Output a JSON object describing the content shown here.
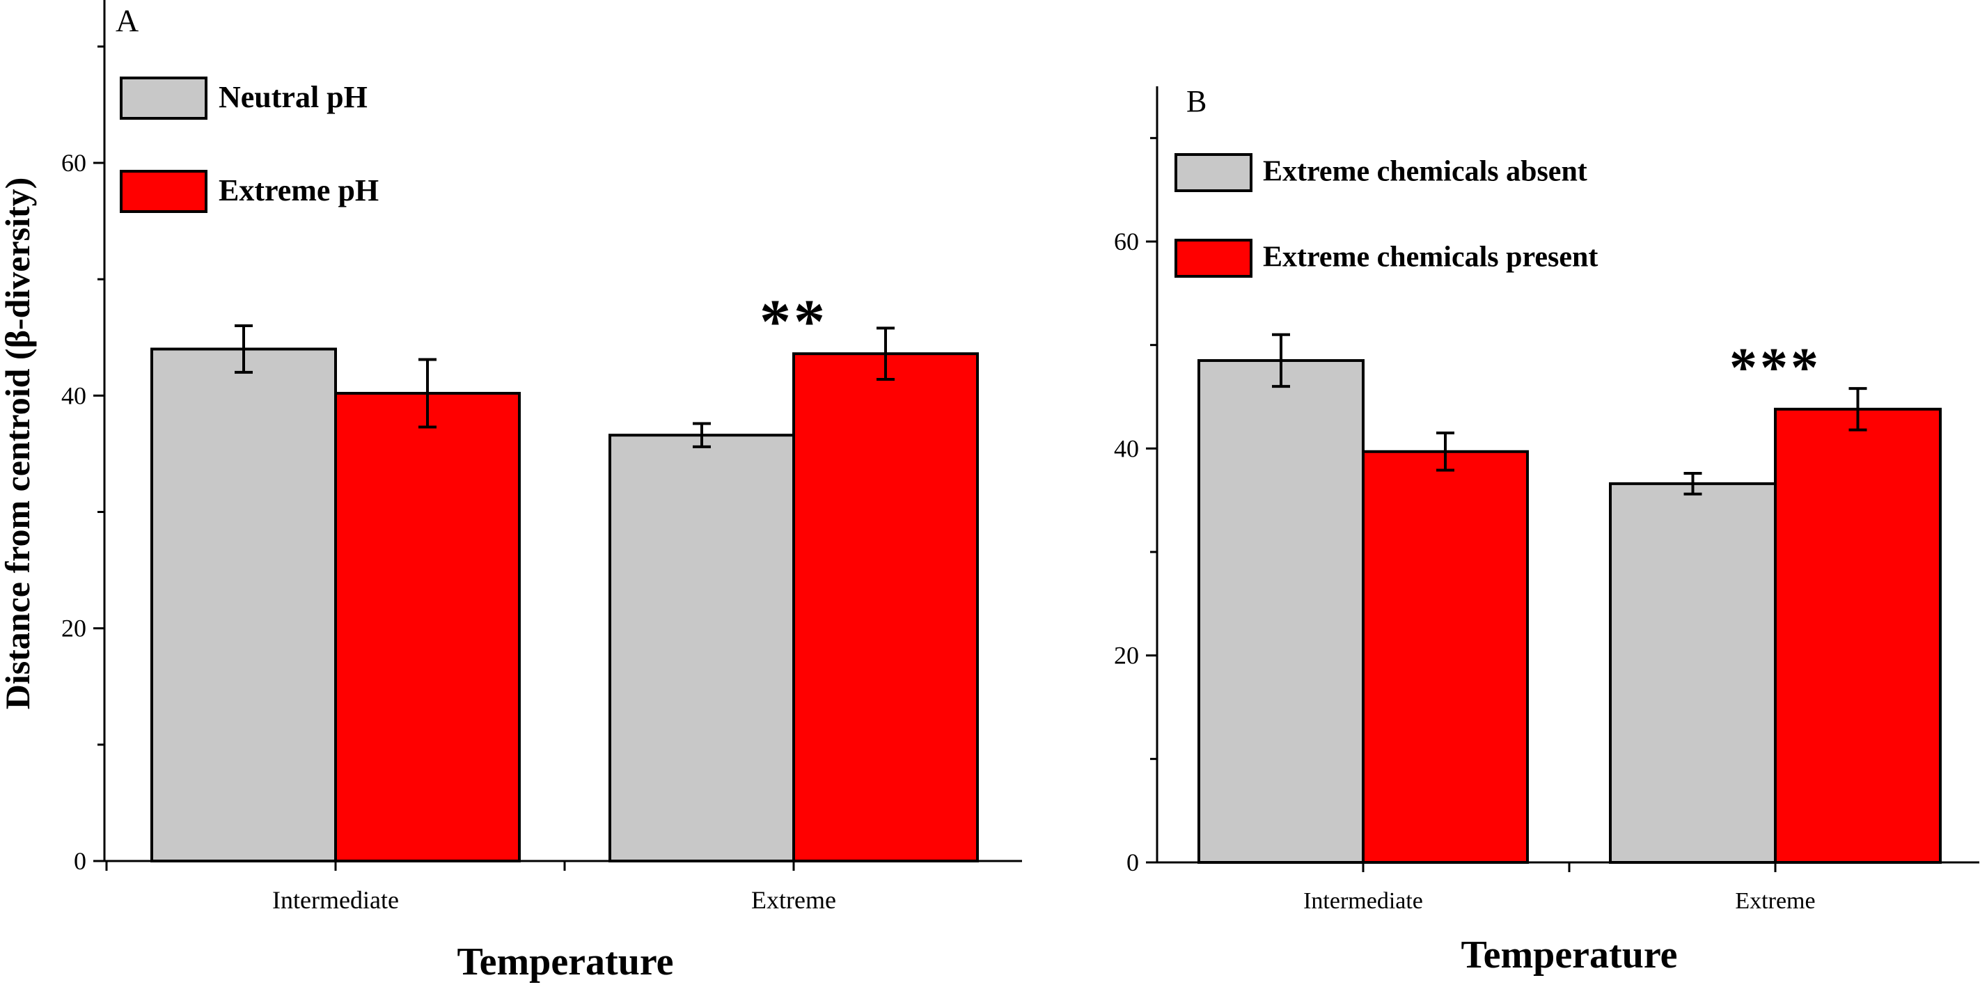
{
  "figure": {
    "ylabel": "Distance from centroid (β-diversity)"
  },
  "chart_data": [
    {
      "type": "bar",
      "panel_label": "A",
      "categories": [
        "Intermediate",
        "Extreme"
      ],
      "series": [
        {
          "name": "Neutral pH",
          "color": "#c8c8c8",
          "values": [
            44.0,
            36.6
          ],
          "errors": [
            2.0,
            1.0
          ]
        },
        {
          "name": "Extreme pH",
          "color": "#ff0000",
          "values": [
            40.2,
            43.6
          ],
          "errors": [
            2.9,
            2.2
          ]
        }
      ],
      "annotations": [
        {
          "text": "**",
          "category": "Extreme"
        }
      ],
      "xlabel": "Temperature",
      "ylabel": "Distance from centroid (β-diversity)",
      "ylim": [
        0,
        74
      ],
      "yticks": [
        0,
        20,
        40,
        60
      ],
      "legend": "top-left",
      "grid": false
    },
    {
      "type": "bar",
      "panel_label": "B",
      "categories": [
        "Intermediate",
        "Extreme"
      ],
      "series": [
        {
          "name": "Extreme chemicals absent",
          "color": "#c8c8c8",
          "values": [
            48.5,
            36.6
          ],
          "errors": [
            2.5,
            1.0
          ]
        },
        {
          "name": "Extreme chemicals present",
          "color": "#ff0000",
          "values": [
            39.7,
            43.8
          ],
          "errors": [
            1.8,
            2.0
          ]
        }
      ],
      "annotations": [
        {
          "text": "***",
          "category": "Extreme"
        }
      ],
      "xlabel": "Temperature",
      "ylabel": "",
      "ylim": [
        0,
        75
      ],
      "yticks": [
        0,
        20,
        40,
        60
      ],
      "legend": "top-left",
      "grid": false
    }
  ]
}
